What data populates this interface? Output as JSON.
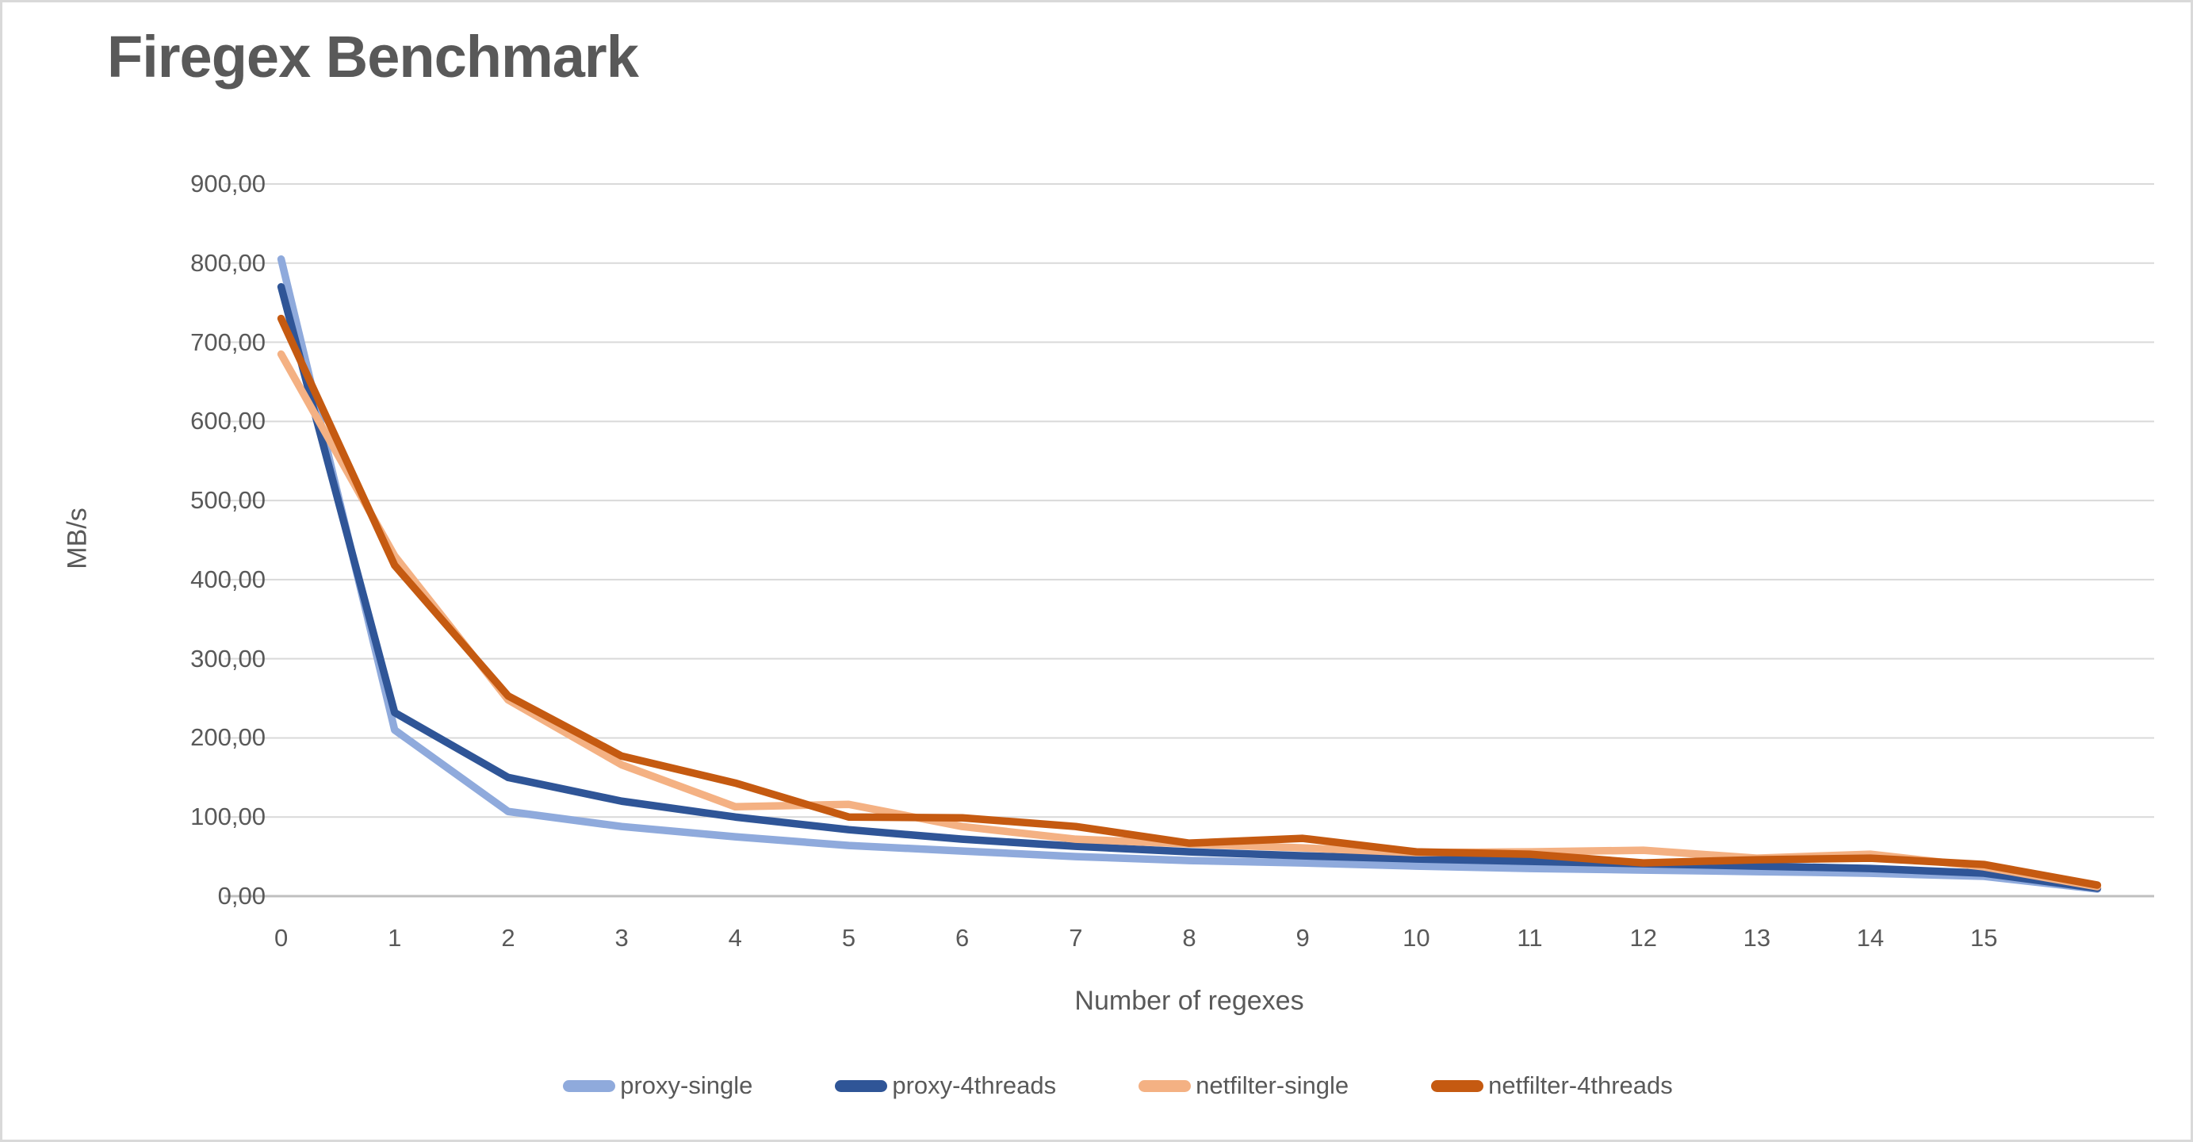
{
  "chart": {
    "title": "Firegex Benchmark",
    "y_axis_title": "MB/s",
    "x_axis_title": "Number of regexes",
    "y_tick_labels": [
      "0,00",
      "100,00",
      "200,00",
      "300,00",
      "400,00",
      "500,00",
      "600,00",
      "700,00",
      "800,00",
      "900,00"
    ],
    "x_tick_labels": [
      "0",
      "1",
      "2",
      "3",
      "4",
      "5",
      "6",
      "7",
      "8",
      "9",
      "10",
      "11",
      "12",
      "13",
      "14",
      "15"
    ]
  },
  "legend": {
    "items": [
      {
        "label": "proxy-single",
        "color": "#8FAADC"
      },
      {
        "label": "proxy-4threads",
        "color": "#2F5597"
      },
      {
        "label": "netfilter-single",
        "color": "#F4B183"
      },
      {
        "label": "netfilter-4threads",
        "color": "#C55A11"
      }
    ]
  },
  "colors": {
    "text": "#595959",
    "gridline": "#D9D9D9",
    "axis_line": "#BFBFBF",
    "background": "#FFFFFF",
    "border": "#D9D9D9"
  },
  "chart_data": {
    "type": "line",
    "title": "Firegex Benchmark",
    "xlabel": "Number of regexes",
    "ylabel": "MB/s",
    "ylim": [
      0,
      900
    ],
    "y_tick_step": 100,
    "grid": true,
    "legend_position": "bottom",
    "x": [
      0,
      1,
      2,
      3,
      4,
      5,
      6,
      7,
      8,
      9,
      10,
      11,
      12,
      13,
      14,
      15,
      16
    ],
    "x_axis_note": "axis labels are shown for 0-15 only; all series extend to a 17th unlabeled point at x=16",
    "series": [
      {
        "name": "proxy-single",
        "color": "#8FAADC",
        "values": [
          805,
          210,
          107,
          88,
          75,
          64,
          57,
          50,
          45,
          42,
          38,
          35,
          33,
          31,
          29,
          25,
          9
        ]
      },
      {
        "name": "proxy-4threads",
        "color": "#2F5597",
        "values": [
          770,
          232,
          150,
          120,
          100,
          84,
          72,
          63,
          56,
          51,
          47,
          44,
          41,
          38,
          35,
          29,
          10
        ]
      },
      {
        "name": "netfilter-single",
        "color": "#F4B183",
        "values": [
          685,
          430,
          248,
          166,
          113,
          116,
          88,
          72,
          66,
          61,
          55,
          56,
          58,
          48,
          53,
          37,
          12
        ]
      },
      {
        "name": "netfilter-4threads",
        "color": "#C55A11",
        "values": [
          730,
          418,
          253,
          177,
          143,
          100,
          99,
          88,
          67,
          73,
          56,
          53,
          42,
          46,
          48,
          40,
          14
        ]
      }
    ]
  }
}
